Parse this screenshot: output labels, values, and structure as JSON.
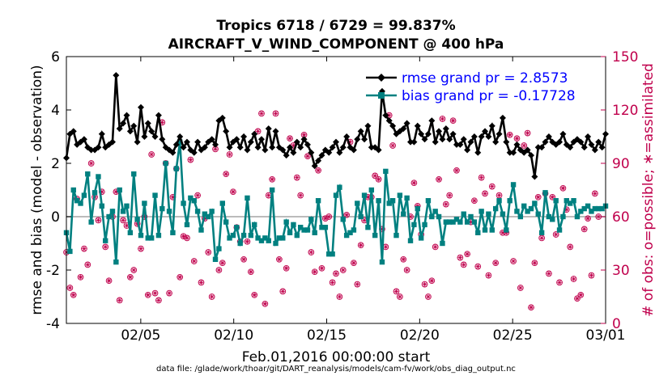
{
  "chart_data": {
    "type": "line",
    "title_line1": "Tropics 6718 / 6729 = 99.837%",
    "title_line2": "AIRCRAFT_V_WIND_COMPONENT @ 400 hPa",
    "xlabel": "Feb.01,2016 00:00:00 start",
    "ylabel_left": "rmse and bias (model - observation)",
    "ylabel_right": "# of obs: o=possible; ∗=assimilated",
    "footer": "data file: /glade/work/thoar/git/DART_reanalysis/models/cam-fv/work/obs_diag_output.nc",
    "xlim": [
      1,
      30
    ],
    "ylim_left": [
      -4,
      6
    ],
    "ylim_right": [
      0,
      150
    ],
    "x_ticks": [
      {
        "v": 5,
        "label": "02/05"
      },
      {
        "v": 10,
        "label": "02/10"
      },
      {
        "v": 15,
        "label": "02/15"
      },
      {
        "v": 20,
        "label": "02/20"
      },
      {
        "v": 25,
        "label": "02/25"
      },
      {
        "v": 30,
        "label": "03/01"
      }
    ],
    "y_ticks_left": [
      "-4",
      "-2",
      "0",
      "2",
      "4",
      "6"
    ],
    "y_ticks_right": [
      "0",
      "30",
      "60",
      "90",
      "120",
      "150"
    ],
    "colors": {
      "rmse": "#000000",
      "bias": "#008080",
      "obs": "#c0004c",
      "right_axis": "#c0004c",
      "legend_text": "#0000ff",
      "zero_line": "#bbbbbb"
    },
    "series": [
      {
        "name": "rmse",
        "legend": "rmse grand pr = 2.8573",
        "values": [
          2.2,
          3.1,
          3.2,
          2.7,
          2.8,
          2.9,
          2.6,
          2.5,
          2.5,
          2.6,
          3.1,
          2.6,
          2.7,
          2.8,
          5.3,
          3.3,
          3.5,
          3.8,
          3.2,
          3.4,
          2.8,
          4.1,
          3.0,
          3.5,
          3.2,
          3.0,
          3.8,
          2.9,
          2.6,
          2.5,
          2.4,
          2.7,
          3.0,
          2.6,
          2.8,
          2.5,
          2.4,
          2.8,
          2.5,
          2.6,
          2.8,
          2.9,
          2.7,
          3.6,
          3.7,
          3.2,
          2.6,
          2.8,
          2.9,
          2.6,
          3.0,
          2.5,
          2.8,
          3.1,
          2.6,
          2.9,
          2.5,
          3.3,
          2.6,
          3.2,
          2.6,
          2.5,
          2.3,
          2.6,
          2.4,
          2.8,
          2.6,
          2.9,
          2.7,
          2.4,
          1.9,
          2.1,
          2.3,
          2.5,
          2.4,
          2.6,
          2.8,
          2.4,
          2.6,
          3.0,
          2.6,
          2.5,
          2.9,
          3.2,
          2.9,
          3.4,
          2.6,
          2.6,
          2.5,
          4.7,
          3.8,
          3.6,
          3.4,
          3.1,
          3.2,
          3.3,
          3.5,
          2.8,
          2.8,
          3.4,
          3.1,
          2.9,
          3.1,
          3.6,
          2.8,
          3.2,
          2.9,
          3.3,
          2.9,
          3.1,
          2.7,
          2.7,
          2.9,
          2.5,
          2.8,
          3.0,
          2.4,
          3.0,
          3.2,
          3.0,
          3.4,
          2.8,
          3.1,
          3.7,
          2.8,
          2.4,
          2.4,
          2.7,
          2.5,
          2.4,
          2.5,
          2.3,
          1.5,
          2.6,
          2.6,
          2.8,
          3.0,
          2.8,
          2.7,
          2.8,
          3.1,
          2.7,
          2.6,
          2.8,
          2.9,
          2.8,
          2.6,
          3.0,
          2.7,
          2.5,
          2.8,
          2.6,
          3.1
        ]
      },
      {
        "name": "bias",
        "legend": "bias grand pr = -0.17728",
        "values": [
          -0.6,
          -1.3,
          1.0,
          0.6,
          0.5,
          0.8,
          1.6,
          -0.2,
          0.9,
          1.5,
          0.4,
          -0.9,
          0.0,
          0.2,
          -1.7,
          1.0,
          0.2,
          0.4,
          -0.6,
          1.6,
          -0.1,
          -0.7,
          0.5,
          -0.8,
          -0.8,
          0.8,
          -0.7,
          0.3,
          2.0,
          0.2,
          -0.6,
          1.8,
          2.8,
          0.5,
          -0.3,
          0.7,
          0.6,
          0.2,
          -0.5,
          0.1,
          0.0,
          0.2,
          -1.6,
          -1.2,
          0.5,
          -0.2,
          -0.8,
          -0.7,
          -0.4,
          -1.0,
          -0.7,
          0.7,
          -0.7,
          -0.3,
          -0.8,
          -0.9,
          -0.8,
          -0.9,
          1.0,
          -1.0,
          -0.8,
          -0.8,
          -0.2,
          -0.6,
          -0.3,
          -0.7,
          -0.4,
          -0.5,
          -0.5,
          -0.1,
          -0.6,
          0.6,
          -0.4,
          -0.4,
          -1.4,
          -1.4,
          0.8,
          1.1,
          -0.1,
          -0.7,
          -0.6,
          -0.5,
          0.5,
          0.0,
          0.8,
          -0.4,
          1.0,
          -0.7,
          0.6,
          -1.7,
          1.7,
          0.5,
          0.6,
          -0.7,
          0.8,
          0.1,
          0.7,
          -0.9,
          -0.3,
          0.3,
          -0.8,
          -0.3,
          0.6,
          0.0,
          0.2,
          0.0,
          -1.0,
          -0.2,
          -0.2,
          -0.2,
          -0.1,
          -0.2,
          0.1,
          -0.2,
          0.0,
          -0.2,
          -0.6,
          0.2,
          -0.5,
          0.1,
          -0.5,
          0.3,
          0.6,
          0.1,
          -0.5,
          0.6,
          1.2,
          0.2,
          0.0,
          0.4,
          0.2,
          0.3,
          0.5,
          0.1,
          -0.6,
          0.9,
          0.0,
          -0.1,
          0.6,
          -0.5,
          0.0,
          0.6,
          0.5,
          0.6,
          0.0,
          0.2,
          0.3,
          0.4,
          0.2,
          0.3,
          0.3,
          0.3,
          0.4
        ]
      },
      {
        "name": "obs_assimilated",
        "values": [
          40,
          20,
          16,
          70,
          26,
          42,
          33,
          90,
          71,
          58,
          74,
          43,
          24,
          60,
          74,
          13,
          58,
          55,
          26,
          30,
          56,
          42,
          60,
          16,
          95,
          17,
          13,
          113,
          90,
          17,
          71,
          87,
          26,
          49,
          48,
          92,
          35,
          72,
          23,
          59,
          40,
          15,
          98,
          30,
          34,
          84,
          95,
          74,
          54,
          46,
          36,
          46,
          29,
          16,
          108,
          118,
          11,
          72,
          81,
          118,
          36,
          18,
          31,
          104,
          100,
          82,
          72,
          106,
          94,
          40,
          29,
          86,
          31,
          59,
          60,
          23,
          28,
          15,
          30,
          61,
          102,
          34,
          22,
          44,
          58,
          71,
          71,
          83,
          81,
          53,
          43,
          117,
          100,
          18,
          15,
          36,
          30,
          60,
          79,
          66,
          50,
          22,
          15,
          24,
          43,
          81,
          115,
          67,
          72,
          114,
          86,
          37,
          33,
          39,
          57,
          69,
          32,
          82,
          73,
          27,
          77,
          34,
          72,
          51,
          51,
          106,
          35,
          104,
          20,
          100,
          107,
          9,
          34,
          71,
          48,
          73,
          28,
          71,
          50,
          23,
          76,
          64,
          43,
          25,
          14,
          16,
          53,
          59,
          27,
          73,
          60
        ]
      }
    ]
  }
}
